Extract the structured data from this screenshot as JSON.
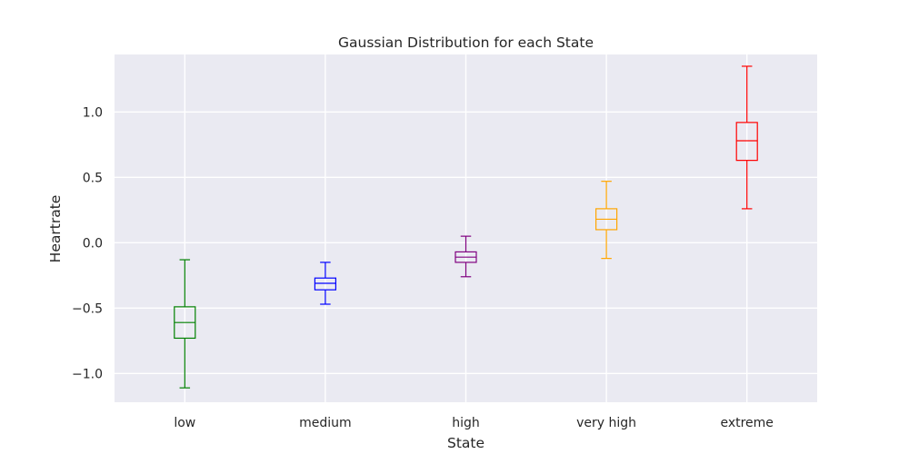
{
  "chart_data": {
    "type": "box",
    "title": "Gaussian Distribution for each State",
    "xlabel": "State",
    "ylabel": "Heartrate",
    "categories": [
      "low",
      "medium",
      "high",
      "very high",
      "extreme"
    ],
    "ylim": [
      -1.22,
      1.44
    ],
    "yticks": [
      -1.0,
      -0.5,
      0.0,
      0.5,
      1.0
    ],
    "ytick_labels": [
      "−1.0",
      "−0.5",
      "0.0",
      "0.5",
      "1.0"
    ],
    "grid": true,
    "boxes": [
      {
        "category": "low",
        "whisker_low": -1.11,
        "q1": -0.73,
        "median": -0.61,
        "q3": -0.49,
        "whisker_high": -0.13,
        "color": "#008000"
      },
      {
        "category": "medium",
        "whisker_low": -0.47,
        "q1": -0.36,
        "median": -0.31,
        "q3": -0.27,
        "whisker_high": -0.15,
        "color": "#0000ff"
      },
      {
        "category": "high",
        "whisker_low": -0.26,
        "q1": -0.15,
        "median": -0.11,
        "q3": -0.07,
        "whisker_high": 0.05,
        "color": "#800080"
      },
      {
        "category": "very high",
        "whisker_low": -0.12,
        "q1": 0.1,
        "median": 0.18,
        "q3": 0.26,
        "whisker_high": 0.47,
        "color": "#ffa500"
      },
      {
        "category": "extreme",
        "whisker_low": 0.26,
        "q1": 0.63,
        "median": 0.78,
        "q3": 0.92,
        "whisker_high": 1.35,
        "color": "#ff0000"
      }
    ],
    "background": "#eaeaf2",
    "grid_color": "#ffffff"
  }
}
